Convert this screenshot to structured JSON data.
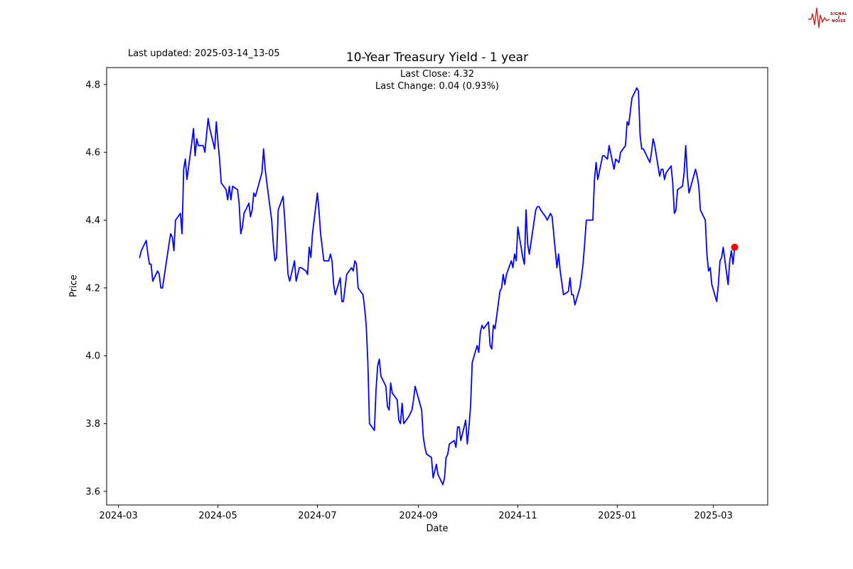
{
  "header": {
    "last_updated": "Last updated: 2025-03-14_13-05"
  },
  "logo": {
    "text_lines": [
      "SIGNAL",
      "2",
      "NOISE"
    ],
    "text_color": "#8b0000",
    "wave_color": "#cc2222"
  },
  "chart_data": {
    "type": "line",
    "title": "10-Year Treasury Yield - 1 year",
    "annotation_lines": [
      "Last Close: 4.32",
      "Last Change: 0.04 (0.93%)"
    ],
    "xlabel": "Date",
    "ylabel": "Price",
    "line_color": "#0000ff",
    "marker": {
      "date": "2025-03-14",
      "value": 4.32,
      "color": "#ff0000"
    },
    "ylim": [
      3.56,
      4.85
    ],
    "y_ticks": [
      3.6,
      3.8,
      4.0,
      4.2,
      4.4,
      4.6,
      4.8
    ],
    "x_ticks": [
      {
        "label": "2024-03",
        "date": "2024-03-01"
      },
      {
        "label": "2024-05",
        "date": "2024-05-01"
      },
      {
        "label": "2024-07",
        "date": "2024-07-01"
      },
      {
        "label": "2024-09",
        "date": "2024-09-01"
      },
      {
        "label": "2024-11",
        "date": "2024-11-01"
      },
      {
        "label": "2025-01",
        "date": "2025-01-01"
      },
      {
        "label": "2025-03",
        "date": "2025-03-01"
      }
    ],
    "grid": false,
    "legend": null,
    "points": [
      [
        "2024-03-14",
        4.29
      ],
      [
        "2024-03-15",
        4.31
      ],
      [
        "2024-03-18",
        4.34
      ],
      [
        "2024-03-19",
        4.3
      ],
      [
        "2024-03-20",
        4.27
      ],
      [
        "2024-03-21",
        4.27
      ],
      [
        "2024-03-22",
        4.22
      ],
      [
        "2024-03-25",
        4.25
      ],
      [
        "2024-03-26",
        4.24
      ],
      [
        "2024-03-27",
        4.2
      ],
      [
        "2024-03-28",
        4.2
      ],
      [
        "2024-04-01",
        4.33
      ],
      [
        "2024-04-02",
        4.36
      ],
      [
        "2024-04-03",
        4.35
      ],
      [
        "2024-04-04",
        4.31
      ],
      [
        "2024-04-05",
        4.4
      ],
      [
        "2024-04-08",
        4.42
      ],
      [
        "2024-04-09",
        4.36
      ],
      [
        "2024-04-10",
        4.55
      ],
      [
        "2024-04-11",
        4.58
      ],
      [
        "2024-04-12",
        4.52
      ],
      [
        "2024-04-15",
        4.63
      ],
      [
        "2024-04-16",
        4.67
      ],
      [
        "2024-04-17",
        4.59
      ],
      [
        "2024-04-18",
        4.64
      ],
      [
        "2024-04-19",
        4.62
      ],
      [
        "2024-04-22",
        4.62
      ],
      [
        "2024-04-23",
        4.6
      ],
      [
        "2024-04-24",
        4.65
      ],
      [
        "2024-04-25",
        4.7
      ],
      [
        "2024-04-26",
        4.67
      ],
      [
        "2024-04-29",
        4.61
      ],
      [
        "2024-04-30",
        4.69
      ],
      [
        "2024-05-01",
        4.63
      ],
      [
        "2024-05-02",
        4.58
      ],
      [
        "2024-05-03",
        4.51
      ],
      [
        "2024-05-06",
        4.49
      ],
      [
        "2024-05-07",
        4.46
      ],
      [
        "2024-05-08",
        4.5
      ],
      [
        "2024-05-09",
        4.46
      ],
      [
        "2024-05-10",
        4.5
      ],
      [
        "2024-05-13",
        4.49
      ],
      [
        "2024-05-14",
        4.45
      ],
      [
        "2024-05-15",
        4.36
      ],
      [
        "2024-05-16",
        4.38
      ],
      [
        "2024-05-17",
        4.42
      ],
      [
        "2024-05-20",
        4.45
      ],
      [
        "2024-05-21",
        4.41
      ],
      [
        "2024-05-22",
        4.43
      ],
      [
        "2024-05-23",
        4.48
      ],
      [
        "2024-05-24",
        4.47
      ],
      [
        "2024-05-28",
        4.54
      ],
      [
        "2024-05-29",
        4.61
      ],
      [
        "2024-05-30",
        4.55
      ],
      [
        "2024-05-31",
        4.51
      ],
      [
        "2024-06-03",
        4.4
      ],
      [
        "2024-06-04",
        4.33
      ],
      [
        "2024-06-05",
        4.28
      ],
      [
        "2024-06-06",
        4.29
      ],
      [
        "2024-06-07",
        4.43
      ],
      [
        "2024-06-10",
        4.47
      ],
      [
        "2024-06-11",
        4.4
      ],
      [
        "2024-06-12",
        4.32
      ],
      [
        "2024-06-13",
        4.24
      ],
      [
        "2024-06-14",
        4.22
      ],
      [
        "2024-06-17",
        4.28
      ],
      [
        "2024-06-18",
        4.22
      ],
      [
        "2024-06-20",
        4.26
      ],
      [
        "2024-06-21",
        4.26
      ],
      [
        "2024-06-24",
        4.25
      ],
      [
        "2024-06-25",
        4.24
      ],
      [
        "2024-06-26",
        4.32
      ],
      [
        "2024-06-27",
        4.29
      ],
      [
        "2024-06-28",
        4.36
      ],
      [
        "2024-07-01",
        4.48
      ],
      [
        "2024-07-02",
        4.43
      ],
      [
        "2024-07-03",
        4.36
      ],
      [
        "2024-07-05",
        4.28
      ],
      [
        "2024-07-08",
        4.28
      ],
      [
        "2024-07-09",
        4.3
      ],
      [
        "2024-07-10",
        4.28
      ],
      [
        "2024-07-11",
        4.21
      ],
      [
        "2024-07-12",
        4.18
      ],
      [
        "2024-07-15",
        4.23
      ],
      [
        "2024-07-16",
        4.16
      ],
      [
        "2024-07-17",
        4.16
      ],
      [
        "2024-07-18",
        4.2
      ],
      [
        "2024-07-19",
        4.24
      ],
      [
        "2024-07-22",
        4.26
      ],
      [
        "2024-07-23",
        4.25
      ],
      [
        "2024-07-24",
        4.28
      ],
      [
        "2024-07-25",
        4.27
      ],
      [
        "2024-07-26",
        4.2
      ],
      [
        "2024-07-29",
        4.18
      ],
      [
        "2024-07-30",
        4.14
      ],
      [
        "2024-07-31",
        4.09
      ],
      [
        "2024-08-01",
        3.98
      ],
      [
        "2024-08-02",
        3.8
      ],
      [
        "2024-08-05",
        3.78
      ],
      [
        "2024-08-06",
        3.9
      ],
      [
        "2024-08-07",
        3.97
      ],
      [
        "2024-08-08",
        3.99
      ],
      [
        "2024-08-09",
        3.94
      ],
      [
        "2024-08-12",
        3.91
      ],
      [
        "2024-08-13",
        3.85
      ],
      [
        "2024-08-14",
        3.84
      ],
      [
        "2024-08-15",
        3.92
      ],
      [
        "2024-08-16",
        3.89
      ],
      [
        "2024-08-19",
        3.87
      ],
      [
        "2024-08-20",
        3.81
      ],
      [
        "2024-08-21",
        3.8
      ],
      [
        "2024-08-22",
        3.86
      ],
      [
        "2024-08-23",
        3.8
      ],
      [
        "2024-08-26",
        3.82
      ],
      [
        "2024-08-27",
        3.83
      ],
      [
        "2024-08-28",
        3.84
      ],
      [
        "2024-08-29",
        3.87
      ],
      [
        "2024-08-30",
        3.91
      ],
      [
        "2024-09-03",
        3.84
      ],
      [
        "2024-09-04",
        3.76
      ],
      [
        "2024-09-05",
        3.73
      ],
      [
        "2024-09-06",
        3.71
      ],
      [
        "2024-09-09",
        3.7
      ],
      [
        "2024-09-10",
        3.64
      ],
      [
        "2024-09-11",
        3.66
      ],
      [
        "2024-09-12",
        3.68
      ],
      [
        "2024-09-13",
        3.65
      ],
      [
        "2024-09-16",
        3.62
      ],
      [
        "2024-09-17",
        3.64
      ],
      [
        "2024-09-18",
        3.7
      ],
      [
        "2024-09-19",
        3.71
      ],
      [
        "2024-09-20",
        3.74
      ],
      [
        "2024-09-23",
        3.75
      ],
      [
        "2024-09-24",
        3.73
      ],
      [
        "2024-09-25",
        3.79
      ],
      [
        "2024-09-26",
        3.79
      ],
      [
        "2024-09-27",
        3.75
      ],
      [
        "2024-09-30",
        3.81
      ],
      [
        "2024-10-01",
        3.74
      ],
      [
        "2024-10-02",
        3.79
      ],
      [
        "2024-10-03",
        3.85
      ],
      [
        "2024-10-04",
        3.98
      ],
      [
        "2024-10-07",
        4.03
      ],
      [
        "2024-10-08",
        4.01
      ],
      [
        "2024-10-09",
        4.07
      ],
      [
        "2024-10-10",
        4.09
      ],
      [
        "2024-10-11",
        4.08
      ],
      [
        "2024-10-14",
        4.1
      ],
      [
        "2024-10-15",
        4.03
      ],
      [
        "2024-10-16",
        4.02
      ],
      [
        "2024-10-17",
        4.09
      ],
      [
        "2024-10-18",
        4.08
      ],
      [
        "2024-10-21",
        4.19
      ],
      [
        "2024-10-22",
        4.2
      ],
      [
        "2024-10-23",
        4.24
      ],
      [
        "2024-10-24",
        4.21
      ],
      [
        "2024-10-25",
        4.24
      ],
      [
        "2024-10-28",
        4.28
      ],
      [
        "2024-10-29",
        4.26
      ],
      [
        "2024-10-30",
        4.3
      ],
      [
        "2024-10-31",
        4.28
      ],
      [
        "2024-11-01",
        4.38
      ],
      [
        "2024-11-04",
        4.29
      ],
      [
        "2024-11-05",
        4.27
      ],
      [
        "2024-11-06",
        4.43
      ],
      [
        "2024-11-07",
        4.33
      ],
      [
        "2024-11-08",
        4.3
      ],
      [
        "2024-11-12",
        4.43
      ],
      [
        "2024-11-13",
        4.44
      ],
      [
        "2024-11-14",
        4.44
      ],
      [
        "2024-11-15",
        4.43
      ],
      [
        "2024-11-18",
        4.41
      ],
      [
        "2024-11-19",
        4.4
      ],
      [
        "2024-11-20",
        4.41
      ],
      [
        "2024-11-21",
        4.42
      ],
      [
        "2024-11-22",
        4.41
      ],
      [
        "2024-11-25",
        4.26
      ],
      [
        "2024-11-26",
        4.3
      ],
      [
        "2024-11-27",
        4.25
      ],
      [
        "2024-11-29",
        4.18
      ],
      [
        "2024-12-02",
        4.19
      ],
      [
        "2024-12-03",
        4.23
      ],
      [
        "2024-12-04",
        4.18
      ],
      [
        "2024-12-05",
        4.18
      ],
      [
        "2024-12-06",
        4.15
      ],
      [
        "2024-12-09",
        4.2
      ],
      [
        "2024-12-10",
        4.23
      ],
      [
        "2024-12-11",
        4.27
      ],
      [
        "2024-12-12",
        4.33
      ],
      [
        "2024-12-13",
        4.4
      ],
      [
        "2024-12-16",
        4.4
      ],
      [
        "2024-12-17",
        4.4
      ],
      [
        "2024-12-18",
        4.52
      ],
      [
        "2024-12-19",
        4.57
      ],
      [
        "2024-12-20",
        4.52
      ],
      [
        "2024-12-23",
        4.59
      ],
      [
        "2024-12-24",
        4.59
      ],
      [
        "2024-12-26",
        4.58
      ],
      [
        "2024-12-27",
        4.62
      ],
      [
        "2024-12-30",
        4.55
      ],
      [
        "2024-12-31",
        4.58
      ],
      [
        "2025-01-02",
        4.57
      ],
      [
        "2025-01-03",
        4.6
      ],
      [
        "2025-01-06",
        4.62
      ],
      [
        "2025-01-07",
        4.69
      ],
      [
        "2025-01-08",
        4.68
      ],
      [
        "2025-01-10",
        4.76
      ],
      [
        "2025-01-13",
        4.79
      ],
      [
        "2025-01-14",
        4.78
      ],
      [
        "2025-01-15",
        4.65
      ],
      [
        "2025-01-16",
        4.61
      ],
      [
        "2025-01-17",
        4.61
      ],
      [
        "2025-01-21",
        4.57
      ],
      [
        "2025-01-22",
        4.6
      ],
      [
        "2025-01-23",
        4.64
      ],
      [
        "2025-01-24",
        4.62
      ],
      [
        "2025-01-27",
        4.53
      ],
      [
        "2025-01-28",
        4.55
      ],
      [
        "2025-01-29",
        4.55
      ],
      [
        "2025-01-30",
        4.52
      ],
      [
        "2025-01-31",
        4.54
      ],
      [
        "2025-02-03",
        4.56
      ],
      [
        "2025-02-04",
        4.51
      ],
      [
        "2025-02-05",
        4.42
      ],
      [
        "2025-02-06",
        4.43
      ],
      [
        "2025-02-07",
        4.49
      ],
      [
        "2025-02-10",
        4.5
      ],
      [
        "2025-02-11",
        4.54
      ],
      [
        "2025-02-12",
        4.62
      ],
      [
        "2025-02-13",
        4.53
      ],
      [
        "2025-02-14",
        4.48
      ],
      [
        "2025-02-18",
        4.55
      ],
      [
        "2025-02-19",
        4.53
      ],
      [
        "2025-02-20",
        4.5
      ],
      [
        "2025-02-21",
        4.43
      ],
      [
        "2025-02-24",
        4.4
      ],
      [
        "2025-02-25",
        4.3
      ],
      [
        "2025-02-26",
        4.25
      ],
      [
        "2025-02-27",
        4.26
      ],
      [
        "2025-02-28",
        4.21
      ],
      [
        "2025-03-03",
        4.16
      ],
      [
        "2025-03-04",
        4.21
      ],
      [
        "2025-03-05",
        4.28
      ],
      [
        "2025-03-06",
        4.29
      ],
      [
        "2025-03-07",
        4.32
      ],
      [
        "2025-03-10",
        4.21
      ],
      [
        "2025-03-11",
        4.28
      ],
      [
        "2025-03-12",
        4.31
      ],
      [
        "2025-03-13",
        4.27
      ],
      [
        "2025-03-14",
        4.32
      ]
    ]
  }
}
